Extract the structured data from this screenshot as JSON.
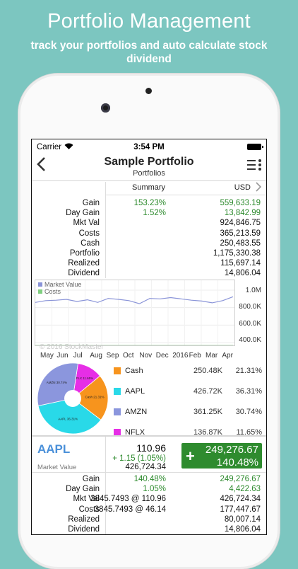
{
  "promo": {
    "title": "Portfolio Management",
    "subtitle": "track your portfolios and auto calculate stock dividend"
  },
  "status_bar": {
    "carrier": "Carrier",
    "time": "3:54 PM"
  },
  "nav": {
    "back_icon": "chevron-left-icon",
    "title": "Sample Portfolio",
    "subtitle": "Portfolios",
    "menu_icon": "list-menu-icon"
  },
  "summary_header": {
    "label": "Summary",
    "currency": "USD"
  },
  "summary": [
    {
      "label": "Gain",
      "pct": "153.23%",
      "value": "559,633.19",
      "positive": true
    },
    {
      "label": "Day Gain",
      "pct": "1.52%",
      "value": "13,842.99",
      "positive": true
    },
    {
      "label": "Mkt Val",
      "pct": "",
      "value": "924,846.75",
      "positive": false
    },
    {
      "label": "Costs",
      "pct": "",
      "value": "365,213.59",
      "positive": false
    },
    {
      "label": "Cash",
      "pct": "",
      "value": "250,483.55",
      "positive": false
    },
    {
      "label": "Portfolio",
      "pct": "",
      "value": "1,175,330.38",
      "positive": false
    },
    {
      "label": "Realized",
      "pct": "",
      "value": "115,697.14",
      "positive": false
    },
    {
      "label": "Dividend",
      "pct": "",
      "value": "14,806.04",
      "positive": false
    }
  ],
  "chart_data": [
    {
      "type": "line",
      "legend": [
        "Market Value",
        "Costs"
      ],
      "series_colors": [
        "#8a94d8",
        "#7fcf7f"
      ],
      "x_ticks": [
        "May",
        "Jun",
        "Jul",
        "Aug",
        "Sep",
        "Oct",
        "Nov",
        "Dec",
        "2016",
        "Feb",
        "Mar",
        "Apr"
      ],
      "y_ticks": [
        "1.0M",
        "800.0K",
        "600.0K",
        "400.0K"
      ],
      "ylim": [
        400000,
        1100000
      ],
      "series": [
        {
          "name": "Market Value",
          "values": [
            860000,
            880000,
            885000,
            895000,
            870000,
            890000,
            860000,
            905000,
            895000,
            880000,
            845000,
            905000,
            900000,
            915000,
            900000,
            885000,
            875000,
            855000,
            880000,
            925000
          ]
        },
        {
          "name": "Costs",
          "values": [
            365000,
            365000,
            365000,
            365000,
            365000,
            365000,
            365000,
            365000,
            365000,
            365000,
            365000,
            365000,
            365000,
            365000,
            365000,
            365000,
            365000,
            365000,
            365000,
            365000
          ]
        }
      ],
      "watermark": "© 2016 StockMaster"
    },
    {
      "type": "pie",
      "slices": [
        {
          "name": "Cash",
          "value": 250.48,
          "display_value": "250.48K",
          "pct": "21.31%",
          "color": "#f7941d",
          "slice_label": "Cash 21.31%"
        },
        {
          "name": "AAPL",
          "value": 426.72,
          "display_value": "426.72K",
          "pct": "36.31%",
          "color": "#29d9e8",
          "slice_label": "AAPL 36.31%"
        },
        {
          "name": "AMZN",
          "value": 361.25,
          "display_value": "361.25K",
          "pct": "30.74%",
          "color": "#8b96dd",
          "slice_label": "AMZN 30.74%"
        },
        {
          "name": "NFLX",
          "value": 136.87,
          "display_value": "136.87K",
          "pct": "11.65%",
          "color": "#e62ee6",
          "slice_label": "NFLX 11.65%"
        }
      ]
    }
  ],
  "stock": {
    "ticker": "AAPL",
    "price": "110.96",
    "change": "+ 1.15 (1.05%)",
    "market_value_label": "Market Value",
    "market_value": "426,724.34",
    "gain_box": {
      "sign": "+",
      "amount": "249,276.67",
      "pct": "140.48%"
    },
    "rows": [
      {
        "label": "Gain",
        "mid": "140.48%",
        "value": "249,276.67",
        "positive": true
      },
      {
        "label": "Day Gain",
        "mid": "1.05%",
        "value": "4,422.63",
        "positive": true
      },
      {
        "label": "Mkt Val",
        "mid": "3845.7493 @ 110.96",
        "value": "426,724.34",
        "positive": false
      },
      {
        "label": "Costs",
        "mid": "3845.7493 @ 46.14",
        "value": "177,447.67",
        "positive": false
      },
      {
        "label": "Realized",
        "mid": "",
        "value": "80,007.14",
        "positive": false
      },
      {
        "label": "Dividend",
        "mid": "",
        "value": "14,806.04",
        "positive": false
      }
    ]
  }
}
